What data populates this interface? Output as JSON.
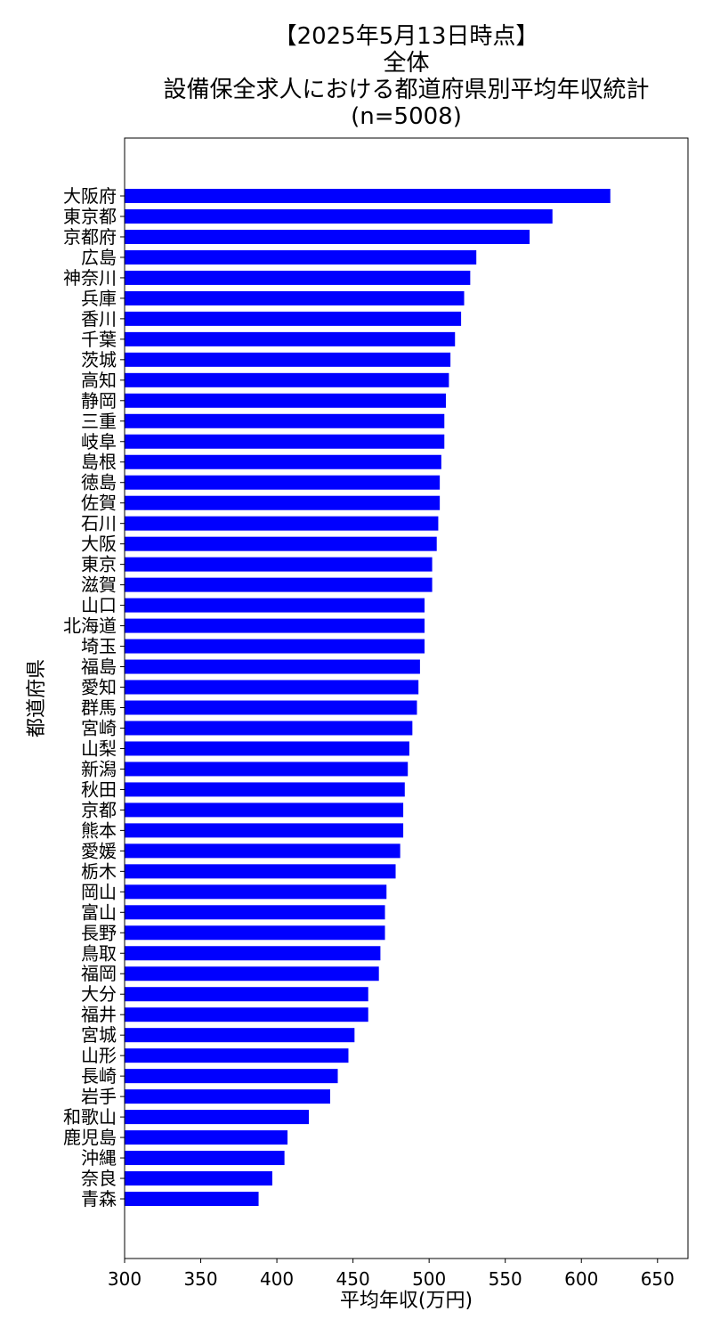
{
  "chart_data": {
    "type": "bar",
    "orientation": "horizontal",
    "title": "【2025年5月13日時点】\n全体\n設備保全求人における都道府県別平均年収統計\n(n=5008)",
    "title_lines": [
      "【2025年5月13日時点】",
      "全体",
      "設備保全求人における都道府県別平均年収統計",
      "(n=5008)"
    ],
    "xlabel": "平均年収(万円)",
    "ylabel": "都道府県",
    "xlim": [
      300,
      670
    ],
    "xticks": [
      300,
      350,
      400,
      450,
      500,
      550,
      600,
      650
    ],
    "grid": false,
    "bar_color": "#0000ff",
    "categories": [
      "大阪府",
      "東京都",
      "京都府",
      "広島",
      "神奈川",
      "兵庫",
      "香川",
      "千葉",
      "茨城",
      "高知",
      "静岡",
      "三重",
      "岐阜",
      "島根",
      "徳島",
      "佐賀",
      "石川",
      "大阪",
      "東京",
      "滋賀",
      "山口",
      "北海道",
      "埼玉",
      "福島",
      "愛知",
      "群馬",
      "宮崎",
      "山梨",
      "新潟",
      "秋田",
      "京都",
      "熊本",
      "愛媛",
      "栃木",
      "岡山",
      "富山",
      "長野",
      "鳥取",
      "福岡",
      "大分",
      "福井",
      "宮城",
      "山形",
      "長崎",
      "岩手",
      "和歌山",
      "鹿児島",
      "沖縄",
      "奈良",
      "青森"
    ],
    "values": [
      619,
      581,
      566,
      531,
      527,
      523,
      521,
      517,
      514,
      513,
      511,
      510,
      510,
      508,
      507,
      507,
      506,
      505,
      502,
      502,
      497,
      497,
      497,
      494,
      493,
      492,
      489,
      487,
      486,
      484,
      483,
      483,
      481,
      478,
      472,
      471,
      471,
      468,
      467,
      460,
      460,
      451,
      447,
      440,
      435,
      421,
      407,
      405,
      397,
      388
    ]
  }
}
